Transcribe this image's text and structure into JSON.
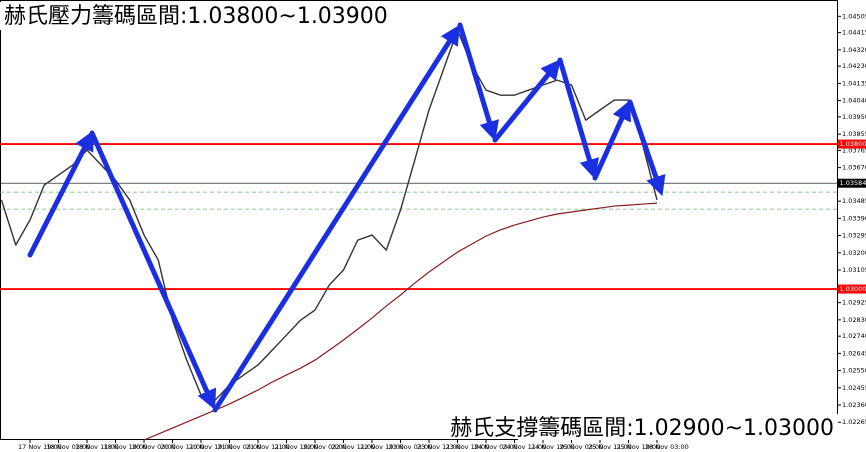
{
  "chart_data": {
    "type": "line",
    "annotations": [
      "赫氏壓力籌碼區間:1.03800~1.03900",
      "赫氏支撐籌碼區間:1.02900~1.03000"
    ],
    "categories": [
      null,
      null,
      "17 Nov 19:00",
      null,
      "18 Nov 03:00",
      null,
      "18 Nov 11:00",
      null,
      "18 Nov 19:00",
      null,
      "20 Nov 03:00",
      null,
      "20 Nov 11:00",
      null,
      "20 Nov 19:00",
      null,
      "21 Nov 03:00",
      null,
      "21 Nov 11:00",
      null,
      "21 Nov 19:00",
      null,
      "22 Nov 03:00",
      null,
      "22 Nov 11:00",
      null,
      "22 Nov 19:00",
      null,
      "23 Nov 03:00",
      null,
      "23 Nov 11:00",
      null,
      "23 Nov 19:00",
      null,
      "24 Nov 03:00",
      null,
      "24 Nov 11:00",
      null,
      "24 Nov 19:00",
      null,
      "25 Nov 03:00",
      null,
      "25 Nov 11:00",
      null,
      "25 Nov 19:00",
      null,
      "28 Nov 03:00",
      null
    ],
    "series": [
      {
        "color": "#333333",
        "values": [
          1.03491,
          1.03243,
          1.03381,
          1.03574,
          1.03629,
          1.03684,
          1.03767,
          1.03684,
          1.03601,
          1.03491,
          1.03298,
          1.0316,
          1.02829,
          1.02608,
          1.02415,
          1.02388,
          1.0247,
          1.02526,
          1.02581,
          1.02663,
          1.02746,
          1.02829,
          1.02884,
          1.03022,
          1.03105,
          1.0327,
          1.03298,
          1.03215,
          1.03436,
          1.03712,
          1.03988,
          1.04208,
          1.04429,
          1.04236,
          1.04098,
          1.0407,
          1.0407,
          1.04098,
          1.04126,
          1.04153,
          1.04126,
          1.03932,
          1.03988,
          1.04043,
          1.04043,
          1.03795,
          1.03491,
          null
        ]
      },
      {
        "color": "#8b1a1a",
        "values": [
          null,
          null,
          null,
          null,
          null,
          null,
          null,
          null,
          null,
          null,
          1.02167,
          1.022,
          1.02233,
          1.02266,
          1.02299,
          1.02332,
          1.02366,
          1.02404,
          1.02443,
          1.02487,
          1.02526,
          1.02564,
          1.02608,
          1.02663,
          1.02719,
          1.02779,
          1.0284,
          1.02906,
          1.02967,
          1.03033,
          1.03094,
          1.03149,
          1.03204,
          1.03248,
          1.03292,
          1.03326,
          1.03353,
          1.03375,
          1.03397,
          1.03414,
          1.03425,
          1.03436,
          1.03447,
          1.03458,
          1.03463,
          1.03469,
          1.03474,
          null
        ]
      }
    ],
    "ylim": [
      1.02167,
      1.04595
    ],
    "yticks": [
      1.04505,
      1.04415,
      {
        "value": 1.0432,
        "label": "1.04320"
      },
      {
        "value": 1.0423,
        "label": "1.04230"
      },
      1.04135,
      {
        "value": 1.0404,
        "label": "1.04040"
      },
      {
        "value": 1.0395,
        "label": "1.03950"
      },
      1.03855,
      1.03765,
      {
        "value": 1.0367,
        "label": "1.03670"
      },
      1.03485,
      {
        "value": 1.0339,
        "label": "1.03390"
      },
      1.03295,
      {
        "value": 1.032,
        "label": "1.03200"
      },
      1.03105,
      1.02925,
      {
        "value": 1.0283,
        "label": "1.02830"
      },
      {
        "value": 1.0274,
        "label": "1.02740"
      },
      1.02645,
      {
        "value": 1.0255,
        "label": "1.02550"
      },
      1.02455,
      {
        "value": 1.0236,
        "label": "1.02360"
      },
      1.02265
    ],
    "hlines": [
      {
        "value": 1.038,
        "label": "1.03800",
        "color": "#ff0000"
      },
      {
        "value": 1.03,
        "label": "1.03000",
        "color": "#ff0000"
      },
      {
        "value": 1.03584,
        "label": "1.03584",
        "color": "#000000"
      }
    ],
    "guides": {
      "color": "#66bb66",
      "values": [
        1.03535,
        1.03441
      ]
    }
  }
}
